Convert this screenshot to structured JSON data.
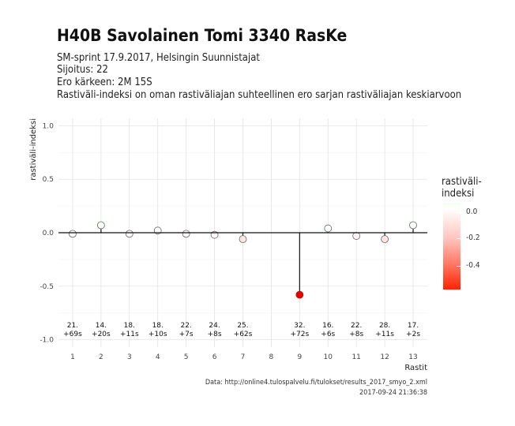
{
  "title": "H40B Savolainen Tomi 3340 RasKe",
  "subtitle_lines": [
    "SM-sprint 17.9.2017, Helsingin Suunnistajat",
    "Sijoitus: 22",
    "Ero kärkeen: 2M 15S",
    "Rastiväli-indeksi on oman rastiväliajan suhteellinen ero sarjan rastiväliajan keskiarvoon"
  ],
  "caption_lines": [
    "Data: http://online4.tulospalvelu.fi/tulokset/results_2017_smyo_2.xml",
    "2017-09-24 21:36:38"
  ],
  "legend": {
    "title_lines": [
      "rastiväli-",
      "indeksi"
    ],
    "ticks": [
      "0.0",
      "-0.2",
      "-0.4"
    ],
    "colors": [
      "#f2fff2",
      "#ffffff",
      "#ffc7c0",
      "#ff7a66",
      "#ff2200"
    ]
  },
  "chart_data": {
    "type": "scatter",
    "style": "lollipop",
    "xlabel": "Rastit",
    "ylabel": "rastiväli-indeksi",
    "ylim": [
      -1.0,
      1.0
    ],
    "yticks": [
      "-1.0",
      "-0.5",
      "0.0",
      "0.5",
      "1.0"
    ],
    "x": [
      1,
      2,
      3,
      4,
      5,
      6,
      7,
      8,
      9,
      10,
      11,
      12,
      13
    ],
    "series": [
      {
        "x": [
          1,
          2,
          3,
          4,
          5,
          6,
          7,
          9,
          10,
          11,
          12,
          13
        ],
        "values": [
          -0.01,
          0.07,
          -0.01,
          0.02,
          -0.01,
          -0.02,
          -0.06,
          -0.58,
          0.04,
          -0.03,
          -0.06,
          0.07
        ]
      }
    ],
    "annotations": [
      {
        "x": 1,
        "rank": "21.",
        "diff": "+69s"
      },
      {
        "x": 2,
        "rank": "14.",
        "diff": "+20s"
      },
      {
        "x": 3,
        "rank": "18.",
        "diff": "+11s"
      },
      {
        "x": 4,
        "rank": "18.",
        "diff": "+10s"
      },
      {
        "x": 5,
        "rank": "22.",
        "diff": "+7s"
      },
      {
        "x": 6,
        "rank": "24.",
        "diff": "+8s"
      },
      {
        "x": 7,
        "rank": "25.",
        "diff": "+62s"
      },
      {
        "x": 9,
        "rank": "32.",
        "diff": "+72s"
      },
      {
        "x": 10,
        "rank": "16.",
        "diff": "+6s"
      },
      {
        "x": 11,
        "rank": "22.",
        "diff": "+8s"
      },
      {
        "x": 12,
        "rank": "28.",
        "diff": "+11s"
      },
      {
        "x": 13,
        "rank": "17.",
        "diff": "+2s"
      }
    ],
    "grid": true,
    "legend_position": "right"
  }
}
